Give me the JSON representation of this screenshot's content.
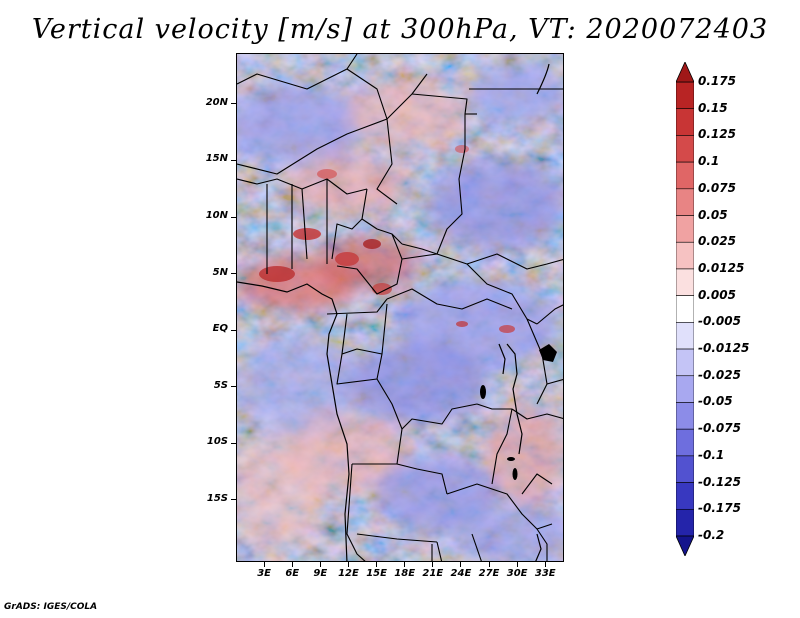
{
  "title": "Vertical velocity [m/s] at 300hPa, VT: 2020072403",
  "credit": "GrADS: IGES/COLA",
  "map": {
    "lat_range": [
      -20.5,
      24.5
    ],
    "lon_range": [
      0,
      35
    ],
    "lat_ticks": [
      {
        "value": 20,
        "label": "20N"
      },
      {
        "value": 15,
        "label": "15N"
      },
      {
        "value": 10,
        "label": "10N"
      },
      {
        "value": 5,
        "label": "5N"
      },
      {
        "value": 0,
        "label": "EQ"
      },
      {
        "value": -5,
        "label": "5S"
      },
      {
        "value": -10,
        "label": "10S"
      },
      {
        "value": -15,
        "label": "15S"
      }
    ],
    "lon_ticks": [
      {
        "value": 3,
        "label": "3E"
      },
      {
        "value": 6,
        "label": "6E"
      },
      {
        "value": 9,
        "label": "9E"
      },
      {
        "value": 12,
        "label": "12E"
      },
      {
        "value": 15,
        "label": "15E"
      },
      {
        "value": 18,
        "label": "18E"
      },
      {
        "value": 21,
        "label": "21E"
      },
      {
        "value": 24,
        "label": "24E"
      },
      {
        "value": 27,
        "label": "27E"
      },
      {
        "value": 30,
        "label": "30E"
      },
      {
        "value": 33,
        "label": "33E"
      }
    ]
  },
  "colorbar": {
    "labels": [
      "0.175",
      "0.15",
      "0.125",
      "0.1",
      "0.075",
      "0.05",
      "0.025",
      "0.0125",
      "0.005",
      "-0.005",
      "-0.0125",
      "-0.025",
      "-0.05",
      "-0.075",
      "-0.1",
      "-0.125",
      "-0.175",
      "-0.2"
    ],
    "colors": [
      "#a01818",
      "#b82424",
      "#c83535",
      "#d44a4a",
      "#e06666",
      "#e88484",
      "#f0a2a2",
      "#f6c2c2",
      "#fbe0e0",
      "#ffffff",
      "#e0e0fb",
      "#c4c4f6",
      "#a8a8f0",
      "#8c8ce8",
      "#6e6ede",
      "#5252d0",
      "#3838c0",
      "#2424aa",
      "#14148c"
    ]
  }
}
